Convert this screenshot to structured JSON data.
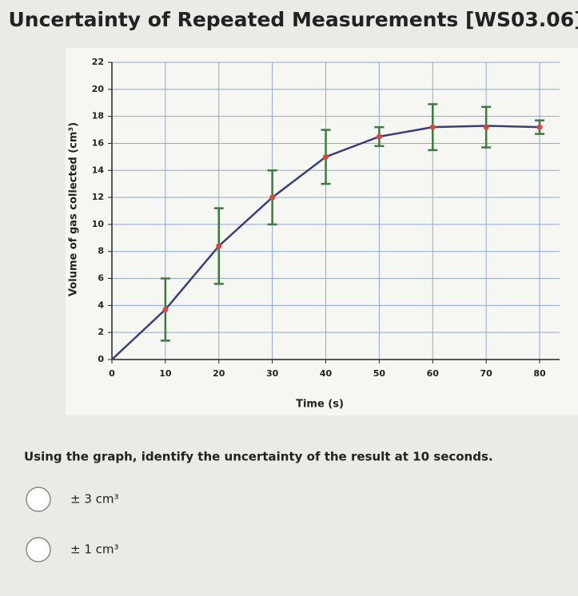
{
  "header": {
    "title": "Uncertainty of Repeated Measurements [WS03.06]"
  },
  "chart_data": {
    "type": "scatter",
    "xlabel": "Time (s)",
    "ylabel": "Volume of gas collected (cm³)",
    "xlim": [
      0,
      80
    ],
    "ylim": [
      0,
      22
    ],
    "xticks": [
      0,
      10,
      20,
      30,
      40,
      50,
      60,
      70,
      80
    ],
    "yticks": [
      0,
      2,
      4,
      6,
      8,
      10,
      12,
      14,
      16,
      18,
      20,
      22
    ],
    "grid": true,
    "points": {
      "color": "#d9473f",
      "error_color": "#3b7d3e",
      "x": [
        10,
        20,
        30,
        40,
        50,
        60,
        70,
        80
      ],
      "values": [
        3.7,
        8.4,
        12,
        15,
        16.5,
        17.2,
        17.2,
        17.2
      ],
      "errors": [
        2.3,
        2.8,
        2,
        2,
        0.7,
        1.7,
        1.5,
        0.5
      ]
    },
    "curve": {
      "color": "#3a3f7a",
      "x": [
        0,
        10,
        20,
        30,
        40,
        50,
        60,
        70,
        80
      ],
      "values": [
        0,
        3.7,
        8.4,
        12,
        15,
        16.5,
        17.2,
        17.3,
        17.2
      ]
    }
  },
  "question": "Using the graph, identify the uncertainty of the result at 10 seconds.",
  "options": [
    "± 3 cm³",
    "± 1 cm³"
  ]
}
